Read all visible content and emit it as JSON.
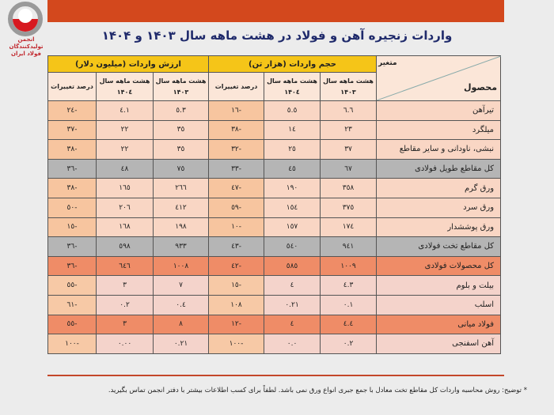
{
  "logo": {
    "text": "انجمن تولیدکنندگان فولاد ایران"
  },
  "title": "واردات زنجیره آهن و فولاد در هشت ماهه سال ۱۴۰۳ و ۱۴۰۴",
  "table": {
    "corner_top": "متغیر",
    "corner_bottom": "محصول",
    "group_volume": "حجم واردات (هزار تن)",
    "group_value": "ارزش واردات (میلیون دلار)",
    "col_1403": "هشت ماهه سال ۱۴۰۳",
    "col_1404": "هشت ماهه سال ۱۴۰٤",
    "col_pct": "درصد تغییرات",
    "rows": [
      {
        "product": "تیرآهن",
        "v1403": "٦.٦",
        "v1404": "٥.٥",
        "vpct": "-١٦",
        "d1403": "٥.٣",
        "d1404": "٤.١",
        "dpct": "-٢٤",
        "style": "normal"
      },
      {
        "product": "میلگرد",
        "v1403": "٢٣",
        "v1404": "١٤",
        "vpct": "-٣٨",
        "d1403": "٣٥",
        "d1404": "٢٢",
        "dpct": "-٣٧",
        "style": "normal"
      },
      {
        "product": "نبشی، ناودانی و سایر مقاطع",
        "v1403": "٣٧",
        "v1404": "٢٥",
        "vpct": "-٣٢",
        "d1403": "٣٥",
        "d1404": "٢٢",
        "dpct": "-٣٨",
        "style": "normal"
      },
      {
        "product": "کل مقاطع طویل فولادی",
        "v1403": "٦٧",
        "v1404": "٤٥",
        "vpct": "-٣٣",
        "d1403": "٧٥",
        "d1404": "٤٨",
        "dpct": "-٣٦",
        "style": "gray"
      },
      {
        "product": "ورق گرم",
        "v1403": "٣٥٨",
        "v1404": "١٩٠",
        "vpct": "-٤٧",
        "d1403": "٢٦٦",
        "d1404": "١٦٥",
        "dpct": "-٣٨",
        "style": "normal"
      },
      {
        "product": "ورق سرد",
        "v1403": "٣٧٥",
        "v1404": "١٥٤",
        "vpct": "-٥٩",
        "d1403": "٤١٢",
        "d1404": "٢٠٦",
        "dpct": "-٥٠",
        "style": "normal"
      },
      {
        "product": "ورق پوششدار",
        "v1403": "١٧٤",
        "v1404": "١٥٧",
        "vpct": "-١٠",
        "d1403": "١٩٨",
        "d1404": "١٦٨",
        "dpct": "-١٥",
        "style": "normal"
      },
      {
        "product": "کل مقاطع تخت فولادی",
        "v1403": "٩٤١",
        "v1404": "٥٤٠",
        "vpct": "-٤٣",
        "d1403": "٩٣٣",
        "d1404": "٥٩٨",
        "dpct": "-٣٦",
        "style": "gray"
      },
      {
        "product": "کل محصولات فولادی",
        "v1403": "١٠٠٩",
        "v1404": "٥٨٥",
        "vpct": "-٤٢",
        "d1403": "١٠٠٨",
        "d1404": "٦٤٦",
        "dpct": "-٣٦",
        "style": "total"
      },
      {
        "product": "بیلت و بلوم",
        "v1403": "٤.٣",
        "v1404": "٤",
        "vpct": "-١٥",
        "d1403": "٧",
        "d1404": "٣",
        "dpct": "-٥٥",
        "style": "light"
      },
      {
        "product": "اسلب",
        "v1403": "٠.١",
        "v1404": "٠.٢١",
        "vpct": "١٠٨",
        "d1403": "٠.٤",
        "d1404": "٠.٢",
        "dpct": "-٦١",
        "style": "light"
      },
      {
        "product": "فولاد میانی",
        "v1403": "٤.٤",
        "v1404": "٤",
        "vpct": "-١٢",
        "d1403": "٨",
        "d1404": "٣",
        "dpct": "-٥٥",
        "style": "total"
      },
      {
        "product": "آهن اسفنجی",
        "v1403": "٠.٢",
        "v1404": "٠.٠",
        "vpct": "-١٠٠",
        "d1403": "٠.٢١",
        "d1404": "٠.٠٠",
        "dpct": "-١٠٠",
        "style": "light"
      }
    ]
  },
  "note": "* توضیح: روش محاسبه واردات کل مقاطع تخت معادل با جمع جبری انواع ورق نمی باشد. لطفاً برای کسب اطلاعات بیشتر با دفتر انجمن تماس بگیرید.",
  "colors": {
    "topbar": "#d3481d",
    "header": "#f5c518",
    "title": "#1f2a6b",
    "total": "#ef8c67",
    "gray": "#b5b5b5"
  }
}
